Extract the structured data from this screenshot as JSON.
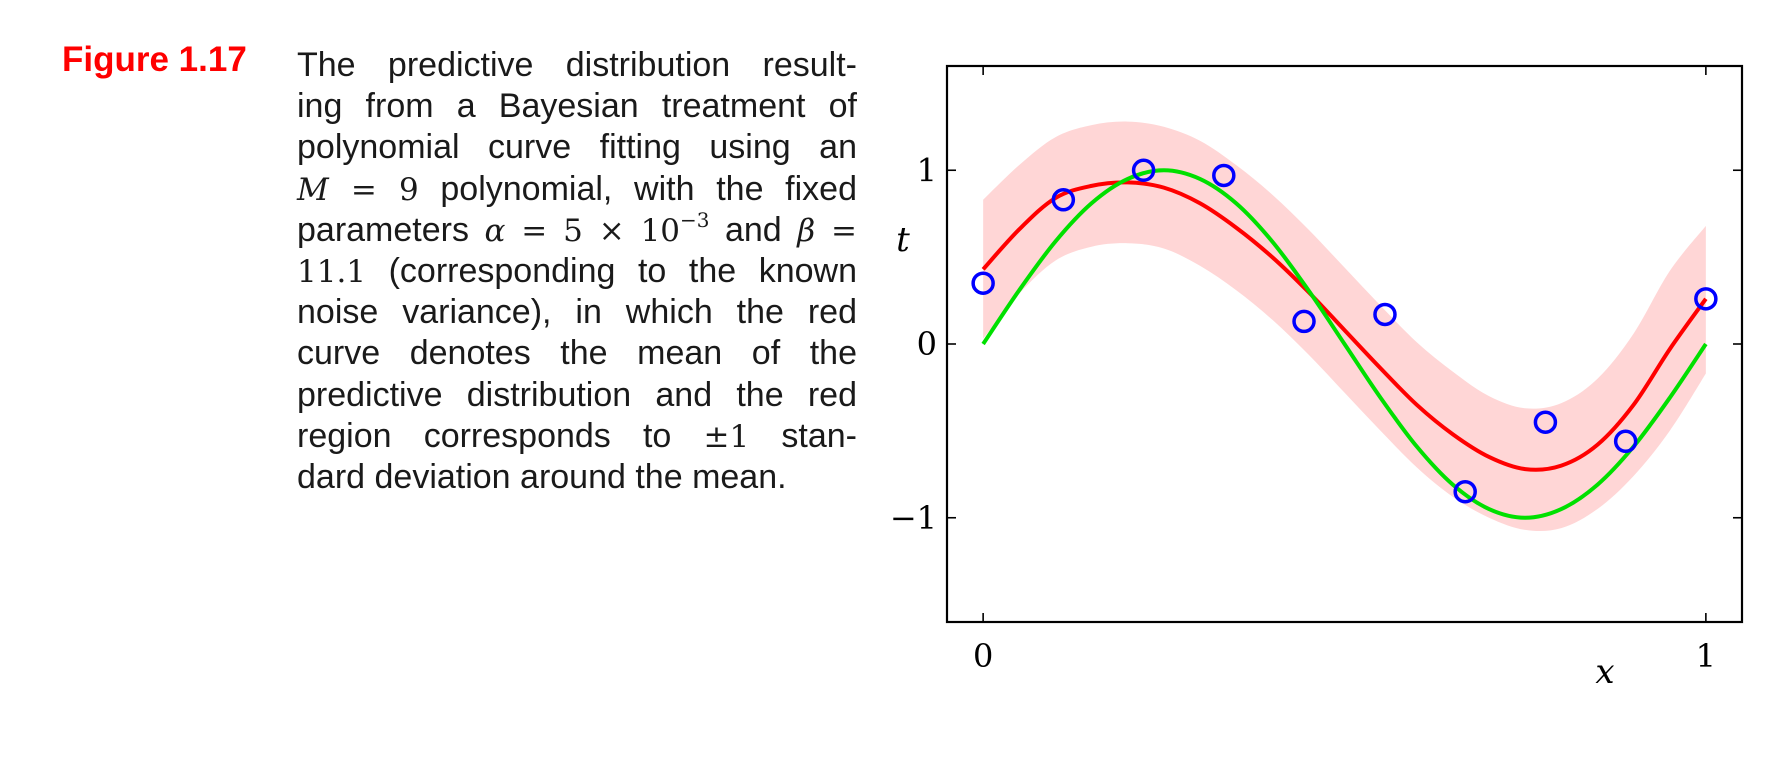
{
  "figure": {
    "label": "Figure 1.17",
    "caption_lines": [
      [
        "The predictive distribution result-"
      ],
      [
        "ing from a Bayesian treatment of"
      ],
      [
        "polynomial curve fitting using an"
      ],
      [
        {
          "mi": "M"
        },
        {
          "m": " = 9"
        },
        " polynomial, with the fixed"
      ],
      [
        "parameters ",
        {
          "mi": "α"
        },
        {
          "m": " = 5 × 10"
        },
        {
          "sup": "−3"
        },
        " and ",
        {
          "mi": "β"
        },
        {
          "m": " ="
        }
      ],
      [
        {
          "m": "11.1"
        },
        " (corresponding to the known"
      ],
      [
        "noise variance), in which the red"
      ],
      [
        "curve denotes the mean of the"
      ],
      [
        "predictive distribution and the red"
      ],
      [
        "region corresponds to ",
        {
          "m": "±1"
        },
        " stan-"
      ],
      [
        "dard deviation around the mean."
      ]
    ]
  },
  "chart_data": {
    "type": "line",
    "xlabel": "x",
    "ylabel": "t",
    "xlim": [
      -0.05,
      1.05
    ],
    "ylim": [
      -1.6,
      1.6
    ],
    "xticks": [
      0,
      1
    ],
    "yticks": [
      1,
      0,
      -1
    ],
    "xtick_labels": [
      "0",
      "1"
    ],
    "ytick_labels": [
      "1",
      "0",
      "−1"
    ],
    "grid": false,
    "colors": {
      "mean": "#ff0000",
      "band": "#ffd6d6",
      "true": "#00e000",
      "points": "#0000ff"
    },
    "points": {
      "x": [
        0.0,
        0.111,
        0.222,
        0.333,
        0.444,
        0.556,
        0.667,
        0.778,
        0.889,
        1.0
      ],
      "y": [
        0.35,
        0.83,
        1.0,
        0.97,
        0.13,
        0.17,
        -0.85,
        -0.45,
        -0.56,
        0.26
      ]
    },
    "x": [
      0.0,
      0.05,
      0.1,
      0.15,
      0.2,
      0.25,
      0.3,
      0.35,
      0.4,
      0.45,
      0.5,
      0.55,
      0.6,
      0.65,
      0.7,
      0.75,
      0.8,
      0.85,
      0.9,
      0.95,
      1.0
    ],
    "series": [
      {
        "values": [
          0.43,
          0.66,
          0.84,
          0.91,
          0.93,
          0.9,
          0.81,
          0.67,
          0.5,
          0.3,
          0.08,
          -0.14,
          -0.35,
          -0.52,
          -0.65,
          -0.72,
          -0.7,
          -0.58,
          -0.35,
          -0.03,
          0.26
        ]
      },
      {
        "values": [
          0.0,
          0.31,
          0.59,
          0.81,
          0.95,
          1.0,
          0.95,
          0.81,
          0.59,
          0.31,
          0.0,
          -0.31,
          -0.59,
          -0.81,
          -0.95,
          -1.0,
          -0.95,
          -0.81,
          -0.59,
          -0.31,
          0.0
        ]
      }
    ],
    "band": {
      "lower": [
        0.03,
        0.29,
        0.48,
        0.56,
        0.58,
        0.55,
        0.45,
        0.31,
        0.14,
        -0.06,
        -0.28,
        -0.5,
        -0.71,
        -0.88,
        -1.0,
        -1.07,
        -1.06,
        -0.95,
        -0.76,
        -0.5,
        -0.17
      ],
      "upper": [
        0.83,
        1.03,
        1.19,
        1.26,
        1.28,
        1.25,
        1.17,
        1.03,
        0.86,
        0.66,
        0.44,
        0.22,
        0.01,
        -0.16,
        -0.3,
        -0.37,
        -0.34,
        -0.2,
        0.06,
        0.42,
        0.68
      ]
    }
  }
}
